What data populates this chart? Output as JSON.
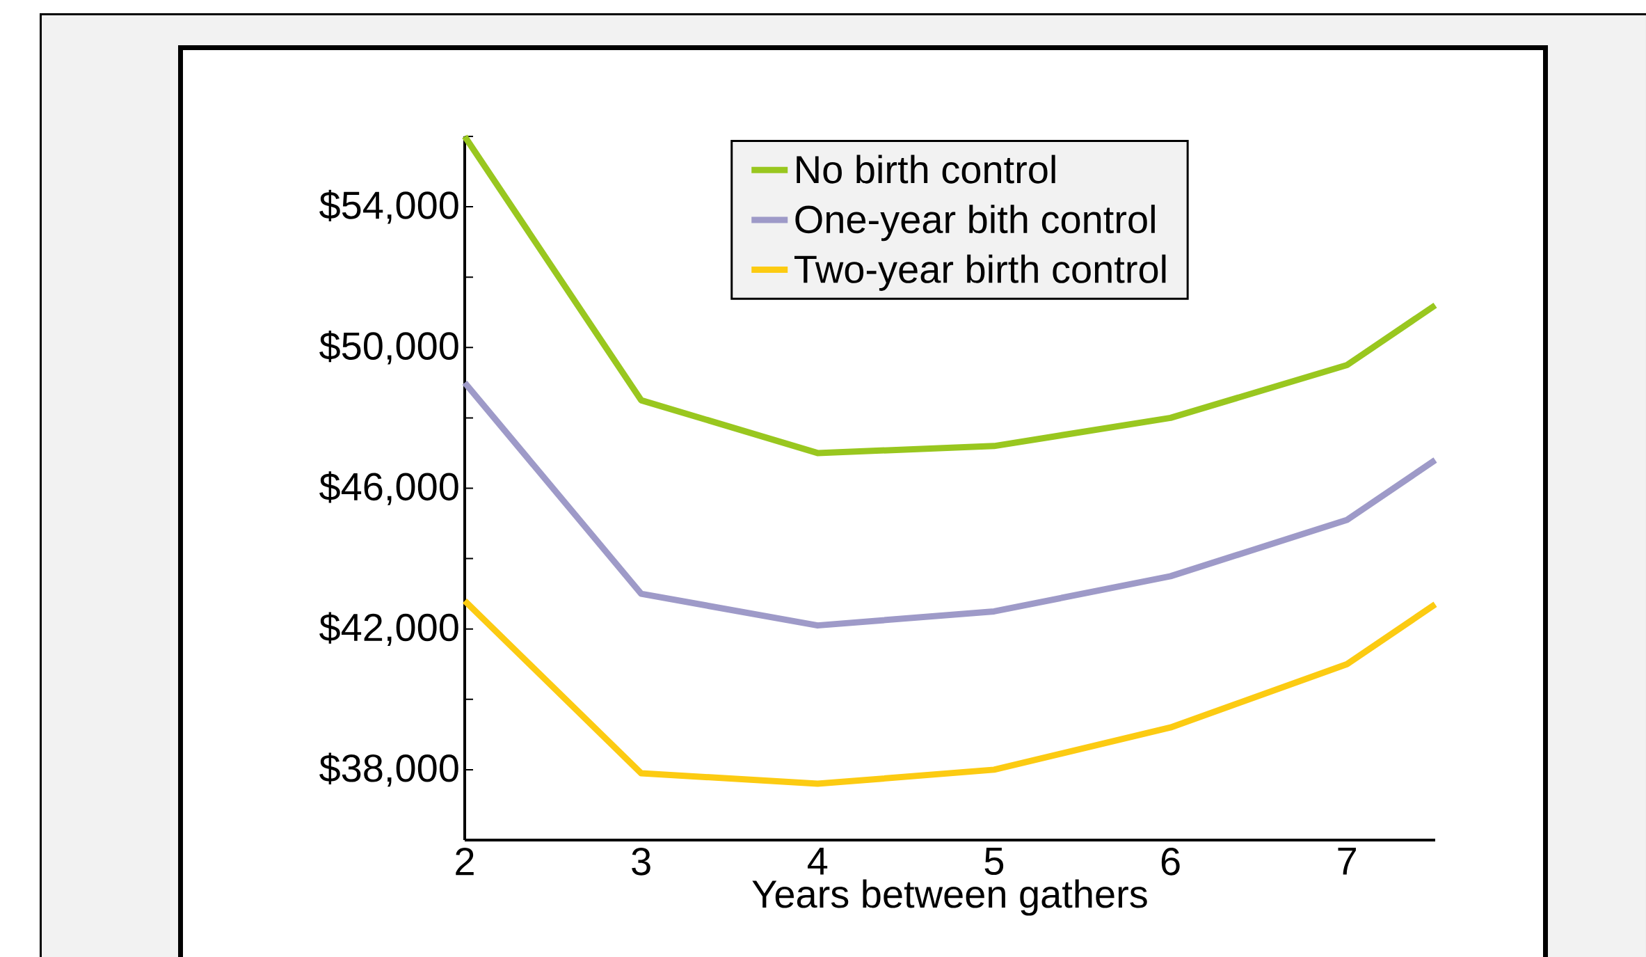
{
  "chart_data": {
    "type": "line",
    "xlabel": "Years between gathers",
    "x": [
      2,
      3,
      4,
      5,
      6,
      7,
      7.5
    ],
    "series": [
      {
        "name": "No birth control",
        "color": "#99c71f",
        "values": [
          56000,
          48500,
          47000,
          47200,
          48000,
          49500,
          51200
        ]
      },
      {
        "name": "One-year bith control",
        "color": "#9e9ac8",
        "values": [
          49000,
          43000,
          42100,
          42500,
          43500,
          45100,
          46800
        ]
      },
      {
        "name": "Two-year birth control",
        "color": "#fccb12",
        "values": [
          42800,
          37900,
          37600,
          38000,
          39200,
          41000,
          42700
        ]
      }
    ],
    "xlim": [
      2,
      7.5
    ],
    "xticks": [
      2,
      3,
      4,
      5,
      6,
      7
    ],
    "ylim": [
      36000,
      56000
    ],
    "yticks": [
      {
        "value": 36000,
        "label": null
      },
      {
        "value": 38000,
        "label": "$38,000"
      },
      {
        "value": 40000,
        "label": null
      },
      {
        "value": 42000,
        "label": "$42,000"
      },
      {
        "value": 44000,
        "label": null
      },
      {
        "value": 46000,
        "label": "$46,000"
      },
      {
        "value": 48000,
        "label": null
      },
      {
        "value": 50000,
        "label": "$50,000"
      },
      {
        "value": 52000,
        "label": null
      },
      {
        "value": 54000,
        "label": "$54,000"
      },
      {
        "value": 56000,
        "label": null
      }
    ],
    "legend": "top",
    "marker": "none",
    "line_style": "solid",
    "grid": false
  }
}
